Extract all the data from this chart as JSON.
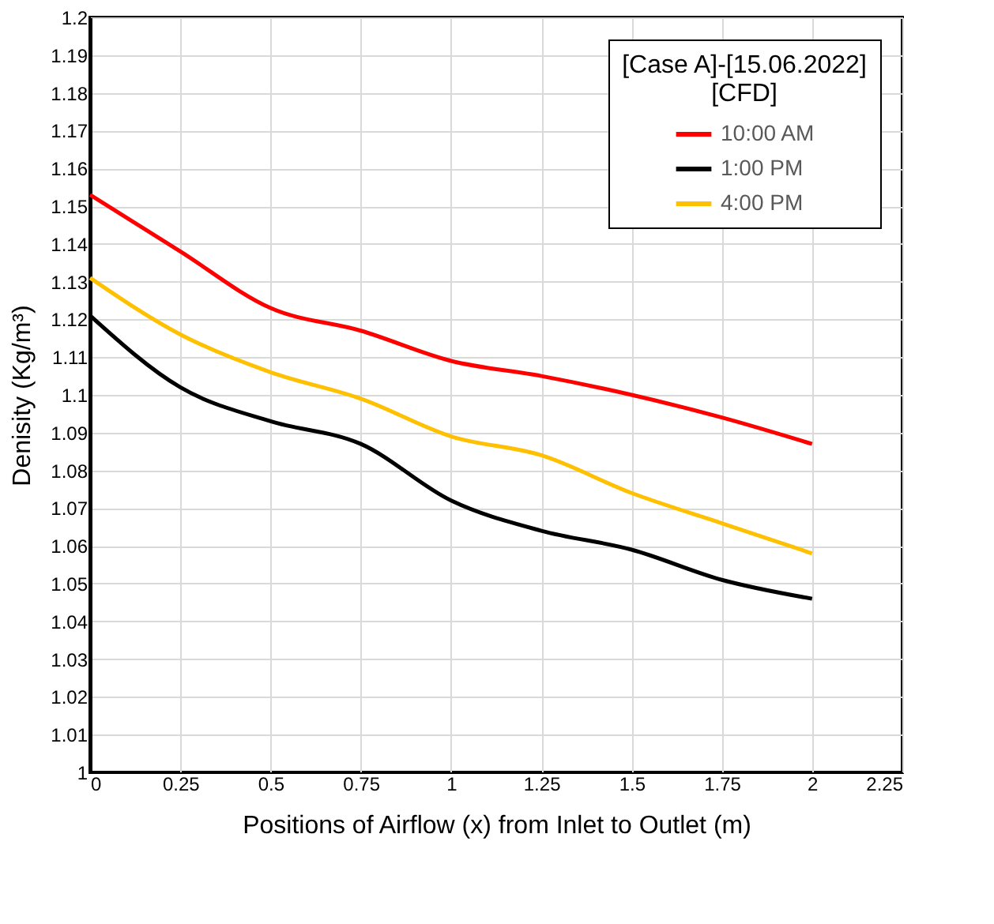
{
  "chart_data": {
    "type": "line",
    "xlabel": "Positions of Airflow (x) from Inlet to Outlet (m)",
    "ylabel": "Denisity (Kg/m³)",
    "legend_title": "[Case A]-[15.06.2022]\n[CFD]",
    "x": [
      0,
      0.25,
      0.5,
      0.75,
      1,
      1.25,
      1.5,
      1.75,
      2
    ],
    "series": [
      {
        "name": "10:00 AM",
        "color": "#ff0000",
        "values": [
          1.153,
          1.138,
          1.123,
          1.117,
          1.109,
          1.105,
          1.1,
          1.094,
          1.087
        ]
      },
      {
        "name": "1:00 PM",
        "color": "#000000",
        "values": [
          1.121,
          1.102,
          1.093,
          1.087,
          1.072,
          1.064,
          1.059,
          1.051,
          1.046
        ]
      },
      {
        "name": "4:00 PM",
        "color": "#ffc000",
        "values": [
          1.131,
          1.116,
          1.106,
          1.099,
          1.089,
          1.084,
          1.074,
          1.066,
          1.058
        ]
      }
    ],
    "xlim": [
      0,
      2.25
    ],
    "xticks": [
      0,
      0.25,
      0.5,
      0.75,
      1,
      1.25,
      1.5,
      1.75,
      2,
      2.25
    ],
    "ylim": [
      1,
      1.2
    ],
    "yticks": [
      1,
      1.01,
      1.02,
      1.03,
      1.04,
      1.05,
      1.06,
      1.07,
      1.08,
      1.09,
      1.1,
      1.11,
      1.12,
      1.13,
      1.14,
      1.15,
      1.16,
      1.17,
      1.18,
      1.19,
      1.2
    ],
    "grid": true,
    "legend": "top right",
    "marker": "none",
    "line_style": "solid"
  }
}
